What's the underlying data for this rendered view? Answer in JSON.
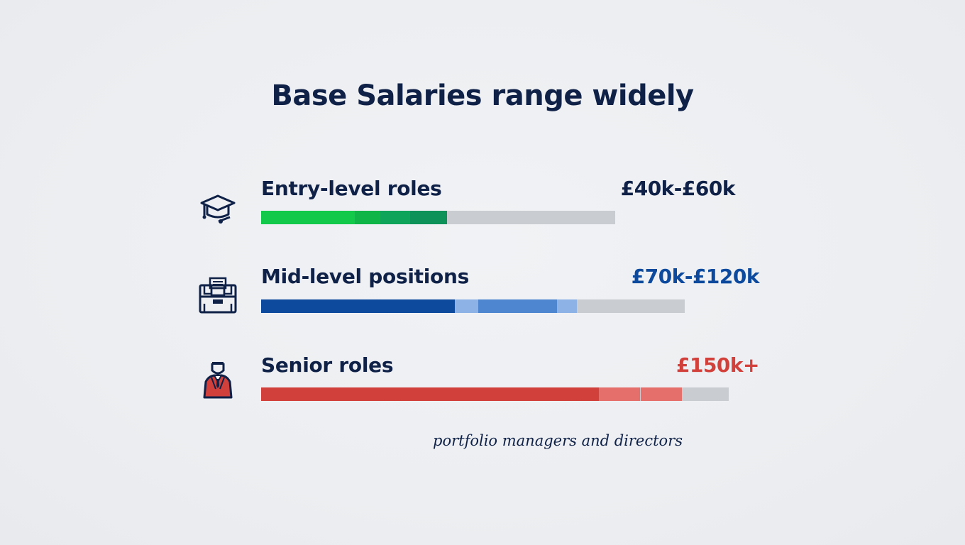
{
  "chart_data": {
    "type": "bar",
    "title": "Base Salaries range widely",
    "categories": [
      "Entry-level roles",
      "Mid-level positions",
      "Senior roles"
    ],
    "series": [
      {
        "values": [
          "£40k-£60k",
          "£70k-£120k",
          "£150k+"
        ]
      }
    ],
    "annotations": [
      "portfolio managers and directors"
    ]
  },
  "rows": [
    {
      "label": "Entry-level roles",
      "value": "£40k-£60k",
      "icon": "graduation-cap-icon",
      "value_color": "#0f2147",
      "fill_fraction": 0.53,
      "colors": [
        "#12c94a",
        "#10b548",
        "#0ea45a",
        "#0d935a"
      ]
    },
    {
      "label": "Mid-level positions",
      "value": "£70k-£120k",
      "icon": "office-desk-icon",
      "value_color": "#0d4a9e",
      "fill_fraction": 0.75,
      "colors": [
        "#0d4a9e",
        "#8db3e6",
        "#4f86d0",
        "#8db3e6"
      ]
    },
    {
      "label": "Senior roles",
      "value": "£150k+",
      "icon": "executive-person-icon",
      "value_color": "#d2403c",
      "fill_fraction": 0.9,
      "colors": [
        "#d2403c",
        "#e46f6b",
        "#e46f6b"
      ]
    }
  ],
  "note": "portfolio managers and directors"
}
